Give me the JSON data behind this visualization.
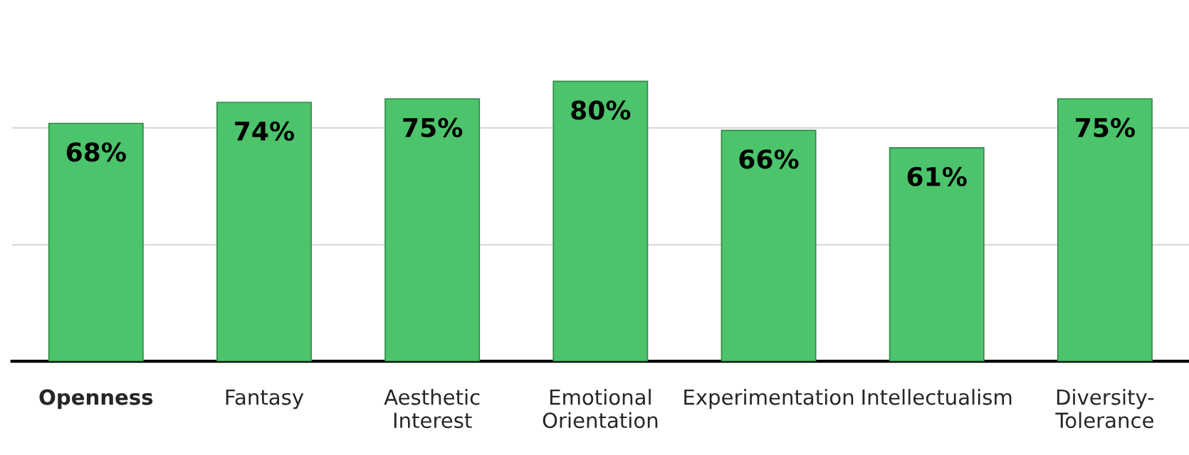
{
  "chart_data": {
    "type": "bar",
    "categories": [
      "Openness",
      "Fantasy",
      "Aesthetic\nInterest",
      "Emotional\nOrientation",
      "Experimentation",
      "Intellectualism",
      "Diversity-\nTolerance"
    ],
    "values": [
      68,
      74,
      75,
      80,
      66,
      61,
      75
    ],
    "value_labels": [
      "68%",
      "74%",
      "75%",
      "80%",
      "66%",
      "61%",
      "75%"
    ],
    "color": "#4cc46c",
    "ref_lines": [
      {
        "axis": "y",
        "value": 33.3,
        "color": "#d9d9d9"
      },
      {
        "axis": "y",
        "value": 66.7,
        "color": "#d9d9d9"
      }
    ],
    "tick_labels": "x"
  }
}
